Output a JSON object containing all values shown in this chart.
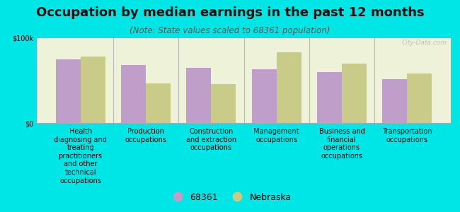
{
  "title": "Occupation by median earnings in the past 12 months",
  "subtitle": "(Note: State values scaled to 68361 population)",
  "categories": [
    "Health\ndiagnosing and\ntreating\npractitioners\nand other\ntechnical\noccupations",
    "Production\noccupations",
    "Construction\nand extraction\noccupations",
    "Management\noccupations",
    "Business and\nfinancial\noperations\noccupations",
    "Transportation\noccupations"
  ],
  "values_68361": [
    75000,
    68000,
    65000,
    63000,
    60000,
    52000
  ],
  "values_nebraska": [
    78000,
    47000,
    46000,
    83000,
    70000,
    58000
  ],
  "color_68361": "#bf9fc9",
  "color_nebraska": "#c8cc88",
  "background_plot": "#eef2d8",
  "background_fig": "#00e5e5",
  "ylim": [
    0,
    100000
  ],
  "ytick_labels": [
    "$0",
    "$100k"
  ],
  "legend_label_68361": "68361",
  "legend_label_nebraska": "Nebraska",
  "watermark": "City-Data.com",
  "bar_width": 0.38,
  "title_fontsize": 13,
  "subtitle_fontsize": 8.5,
  "tick_fontsize": 7,
  "legend_fontsize": 9
}
